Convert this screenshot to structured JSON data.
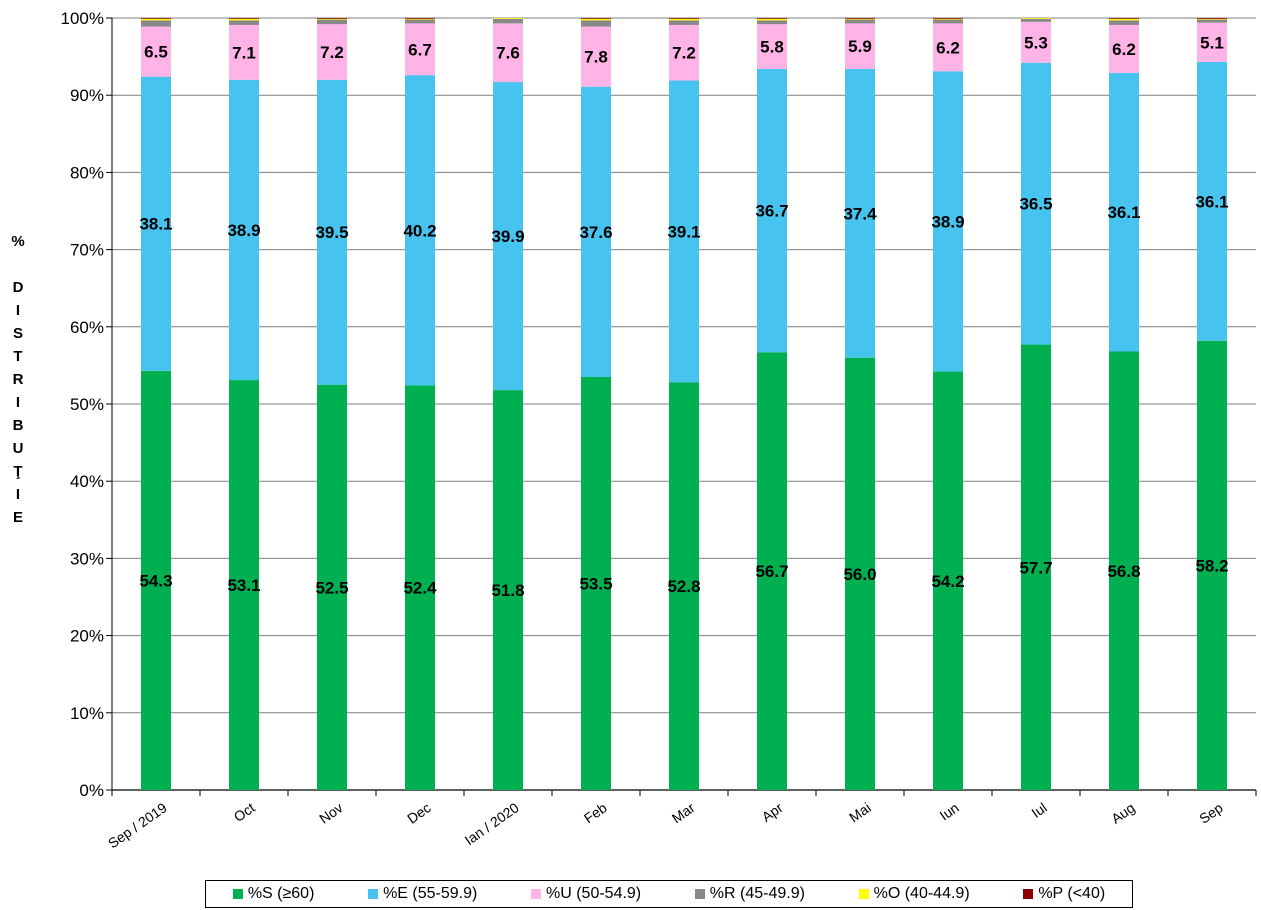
{
  "chart_data": {
    "type": "bar",
    "stacked": true,
    "title": "",
    "xlabel": "",
    "ylabel": "%\n\nD\nI\nS\nT\nR\nI\nB\nU\nŢ\nI\nE",
    "ylim": [
      0,
      100
    ],
    "y_ticks": [
      "0%",
      "10%",
      "20%",
      "30%",
      "40%",
      "50%",
      "60%",
      "70%",
      "80%",
      "90%",
      "100%"
    ],
    "grid": true,
    "legend_position": "bottom",
    "categories": [
      "Sep / 2019",
      "Oct",
      "Nov",
      "Dec",
      "Ian / 2020",
      "Feb",
      "Mar",
      "Apr",
      "Mai",
      "Iun",
      "Iul",
      "Aug",
      "Sep"
    ],
    "series": [
      {
        "name": "%S (≥60)",
        "color": "#00b050",
        "labels": true,
        "values": [
          54.3,
          53.1,
          52.5,
          52.4,
          51.8,
          53.5,
          52.8,
          56.7,
          56.0,
          54.2,
          57.7,
          56.8,
          58.2
        ]
      },
      {
        "name": "%E (55-59.9)",
        "color": "#47c3f0",
        "labels": true,
        "values": [
          38.1,
          38.9,
          39.5,
          40.2,
          39.9,
          37.6,
          39.1,
          36.7,
          37.4,
          38.9,
          36.5,
          36.1,
          36.1
        ]
      },
      {
        "name": "%U (50-54.9)",
        "color": "#ffb3e6",
        "labels": true,
        "values": [
          6.5,
          7.1,
          7.2,
          6.7,
          7.6,
          7.8,
          7.2,
          5.8,
          5.9,
          6.2,
          5.3,
          6.2,
          5.1
        ]
      },
      {
        "name": "%R (45-49.9)",
        "color": "#888888",
        "labels": false,
        "values": [
          0.8,
          0.6,
          0.6,
          0.5,
          0.6,
          0.8,
          0.6,
          0.5,
          0.5,
          0.5,
          0.4,
          0.6,
          0.4
        ]
      },
      {
        "name": "%O (40-44.9)",
        "color": "#ffff00",
        "labels": false,
        "values": [
          0.2,
          0.2,
          0.1,
          0.1,
          0.1,
          0.2,
          0.2,
          0.2,
          0.1,
          0.1,
          0.1,
          0.2,
          0.1
        ]
      },
      {
        "name": "%P (<40)",
        "color": "#8b0000",
        "labels": false,
        "values": [
          0.1,
          0.1,
          0.1,
          0.1,
          0.0,
          0.1,
          0.1,
          0.1,
          0.1,
          0.1,
          0.0,
          0.1,
          0.1
        ]
      }
    ]
  }
}
